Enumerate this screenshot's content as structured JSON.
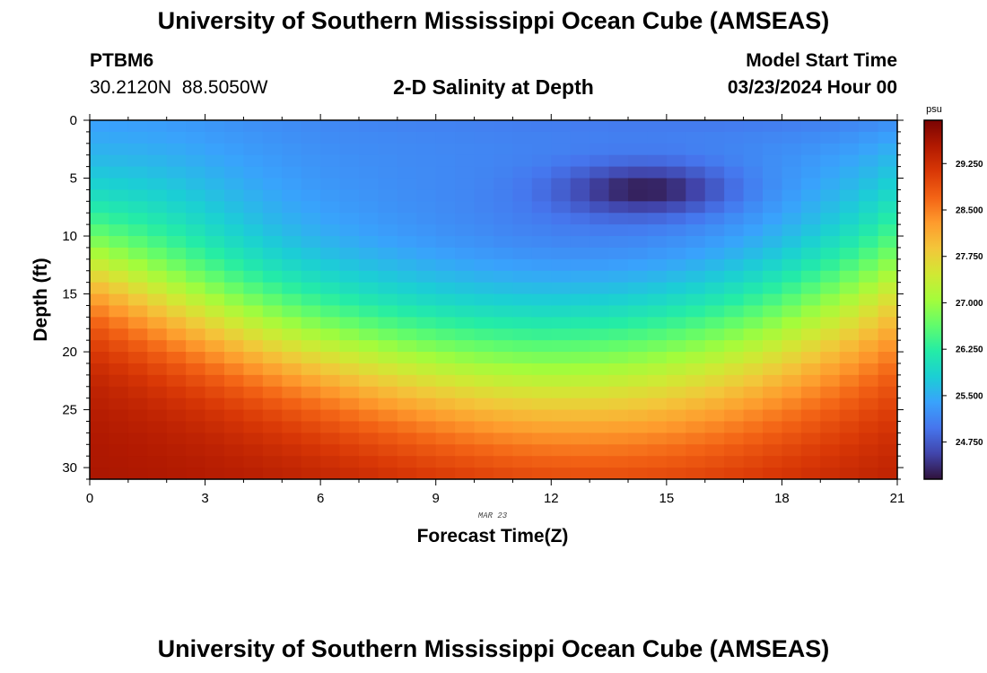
{
  "header": {
    "title": "University of Southern Mississippi Ocean Cube (AMSEAS)",
    "station_id": "PTBM6",
    "coordinates": "30.2120N  88.5050W",
    "subtitle": "2-D Salinity at Depth",
    "model_start_label": "Model Start Time",
    "model_start_value": "03/23/2024 Hour 00"
  },
  "footer": {
    "title": "University of Southern Mississippi Ocean Cube (AMSEAS)"
  },
  "chart_data": {
    "type": "heatmap",
    "title": "2-D Salinity at Depth",
    "xlabel": "Forecast Time(Z)",
    "ylabel": "Depth (ft)",
    "x_ticks": [
      0,
      3,
      6,
      9,
      12,
      15,
      18,
      21
    ],
    "y_ticks": [
      0,
      5,
      10,
      15,
      20,
      25,
      30
    ],
    "xlim": [
      0,
      21
    ],
    "ylim": [
      0,
      31
    ],
    "date_annotation": "MAR 23",
    "colorbar": {
      "unit": "psu",
      "range": [
        24.15,
        29.95
      ],
      "ticks": [
        "24.750",
        "25.500",
        "26.250",
        "27.000",
        "27.750",
        "28.500",
        "29.250"
      ],
      "colors": [
        "#30123b",
        "#4145ab",
        "#4675ed",
        "#39a2fc",
        "#1bcfd4",
        "#24eca6",
        "#61fc6c",
        "#a4fc3b",
        "#d1e834",
        "#f3c63a",
        "#fe9b2d",
        "#f36315",
        "#d93806",
        "#b11901",
        "#7a0403"
      ]
    },
    "grid": {
      "x_cells": 42,
      "y_cells": 31
    },
    "field_description": {
      "surface_salinity": 24.95,
      "low_salinity_core": {
        "time": 14.5,
        "depth": 6,
        "value": 24.2
      },
      "bottom_salinity": 29.6,
      "halocline_depth_start": 13,
      "halocline_depth_min": 23,
      "halocline_depth_end": 14
    }
  }
}
